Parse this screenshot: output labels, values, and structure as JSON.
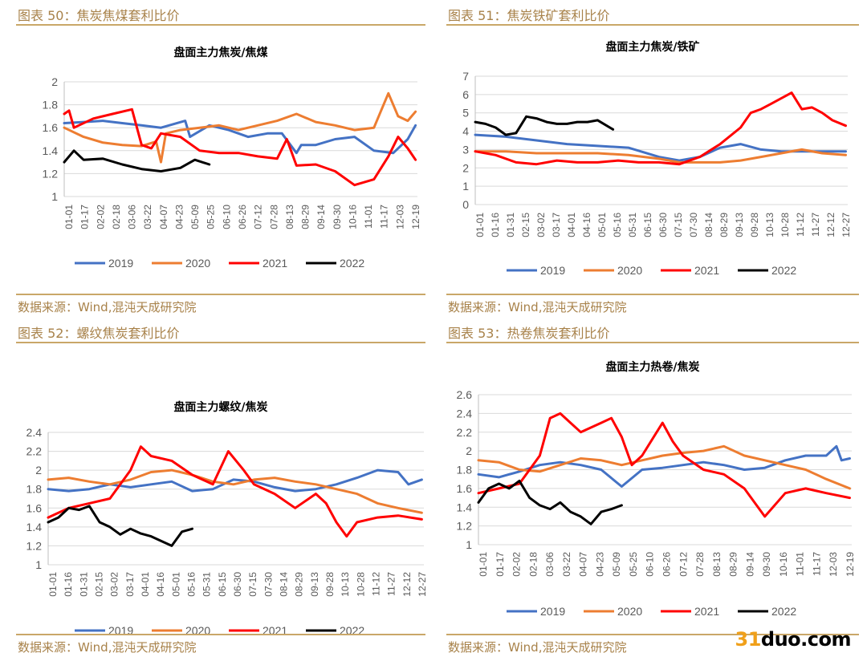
{
  "panels": [
    {
      "fig_title": "图表 50：焦炭焦煤套利比价",
      "source": "数据来源：Wind,混沌天成研究院",
      "chart_data": {
        "type": "line",
        "title": "盘面主力焦炭/焦煤",
        "ylim": [
          1,
          2
        ],
        "yticks": [
          "1",
          "1.2",
          "1.4",
          "1.6",
          "1.8",
          "2"
        ],
        "xticks": [
          "01-01",
          "01-17",
          "02-02",
          "02-18",
          "03-06",
          "03-22",
          "04-07",
          "04-23",
          "05-09",
          "05-25",
          "06-10",
          "06-26",
          "07-12",
          "07-28",
          "08-13",
          "08-29",
          "09-14",
          "09-30",
          "10-16",
          "11-01",
          "11-17",
          "12-03",
          "12-19"
        ],
        "legend_position": "bottom",
        "grid": true,
        "series": [
          {
            "name": "2019",
            "color": "#4472c4",
            "days": [
              0,
              20,
              40,
              60,
              80,
              100,
              125,
              130,
              150,
              170,
              190,
              210,
              225,
              240,
              245,
              260,
              280,
              300,
              320,
              340,
              355,
              363
            ],
            "values": [
              1.64,
              1.65,
              1.66,
              1.64,
              1.62,
              1.6,
              1.66,
              1.52,
              1.62,
              1.58,
              1.52,
              1.55,
              1.55,
              1.38,
              1.45,
              1.45,
              1.5,
              1.52,
              1.4,
              1.38,
              1.5,
              1.62
            ]
          },
          {
            "name": "2020",
            "color": "#ed7d31",
            "days": [
              0,
              20,
              40,
              60,
              80,
              95,
              100,
              105,
              120,
              140,
              160,
              180,
              200,
              220,
              240,
              260,
              280,
              300,
              320,
              330,
              335,
              345,
              355,
              363
            ],
            "values": [
              1.6,
              1.52,
              1.47,
              1.45,
              1.44,
              1.48,
              1.3,
              1.55,
              1.58,
              1.6,
              1.62,
              1.58,
              1.62,
              1.66,
              1.72,
              1.65,
              1.62,
              1.58,
              1.6,
              1.8,
              1.9,
              1.7,
              1.66,
              1.74
            ]
          },
          {
            "name": "2021",
            "color": "#ff0000",
            "days": [
              0,
              5,
              10,
              30,
              50,
              70,
              80,
              90,
              100,
              120,
              140,
              160,
              180,
              200,
              220,
              230,
              240,
              260,
              280,
              300,
              320,
              335,
              345,
              355,
              363
            ],
            "values": [
              1.72,
              1.75,
              1.6,
              1.68,
              1.72,
              1.76,
              1.45,
              1.42,
              1.55,
              1.52,
              1.4,
              1.38,
              1.38,
              1.35,
              1.33,
              1.5,
              1.27,
              1.28,
              1.22,
              1.1,
              1.15,
              1.35,
              1.52,
              1.42,
              1.32
            ]
          },
          {
            "name": "2022",
            "color": "#000000",
            "days": [
              0,
              10,
              20,
              40,
              60,
              80,
              100,
              120,
              135,
              150
            ],
            "values": [
              1.3,
              1.4,
              1.32,
              1.33,
              1.28,
              1.24,
              1.22,
              1.25,
              1.32,
              1.28
            ]
          }
        ]
      }
    },
    {
      "fig_title": "图表 51：焦炭铁矿套利比价",
      "source": "数据来源：Wind,混沌天成研究院",
      "chart_data": {
        "type": "line",
        "title": "盘面主力焦炭/铁矿",
        "ylim": [
          0,
          7
        ],
        "yticks": [
          "0",
          "1",
          "2",
          "3",
          "4",
          "5",
          "6",
          "7"
        ],
        "xticks": [
          "01-01",
          "01-16",
          "01-31",
          "02-15",
          "03-02",
          "03-17",
          "04-01",
          "04-16",
          "05-01",
          "05-16",
          "05-31",
          "06-15",
          "06-30",
          "07-15",
          "07-30",
          "08-14",
          "08-29",
          "09-13",
          "09-28",
          "10-13",
          "10-28",
          "11-12",
          "11-27",
          "12-12",
          "12-27"
        ],
        "legend_position": "bottom",
        "grid": true,
        "series": [
          {
            "name": "2019",
            "color": "#4472c4",
            "days": [
              0,
              30,
              60,
              90,
              120,
              150,
              180,
              200,
              220,
              240,
              260,
              280,
              300,
              320,
              340,
              363
            ],
            "values": [
              3.8,
              3.7,
              3.5,
              3.3,
              3.2,
              3.1,
              2.6,
              2.4,
              2.6,
              3.1,
              3.3,
              3.0,
              2.9,
              2.9,
              2.9,
              2.9
            ]
          },
          {
            "name": "2020",
            "color": "#ed7d31",
            "days": [
              0,
              30,
              60,
              90,
              120,
              150,
              180,
              200,
              220,
              240,
              260,
              280,
              300,
              320,
              340,
              363
            ],
            "values": [
              2.9,
              2.9,
              2.8,
              2.8,
              2.8,
              2.7,
              2.5,
              2.3,
              2.3,
              2.3,
              2.4,
              2.6,
              2.8,
              3.0,
              2.8,
              2.7
            ]
          },
          {
            "name": "2021",
            "color": "#ff0000",
            "days": [
              0,
              20,
              40,
              60,
              80,
              100,
              120,
              140,
              160,
              180,
              200,
              220,
              240,
              260,
              270,
              280,
              290,
              300,
              310,
              320,
              330,
              340,
              350,
              363
            ],
            "values": [
              2.9,
              2.7,
              2.3,
              2.2,
              2.4,
              2.3,
              2.3,
              2.4,
              2.3,
              2.3,
              2.2,
              2.6,
              3.3,
              4.2,
              5.0,
              5.2,
              5.5,
              5.8,
              6.1,
              5.2,
              5.3,
              5.0,
              4.6,
              4.3
            ]
          },
          {
            "name": "2022",
            "color": "#000000",
            "days": [
              0,
              10,
              20,
              30,
              40,
              50,
              60,
              70,
              80,
              90,
              100,
              110,
              120,
              135
            ],
            "values": [
              4.5,
              4.4,
              4.2,
              3.8,
              3.9,
              4.8,
              4.7,
              4.5,
              4.4,
              4.4,
              4.5,
              4.5,
              4.6,
              4.1
            ]
          }
        ]
      }
    },
    {
      "fig_title": "图表 52：螺纹焦炭套利比价",
      "source": "数据来源：Wind,混沌天成研究院",
      "chart_data": {
        "type": "line",
        "title": "盘面主力螺纹/焦炭",
        "ylim": [
          1,
          2.4
        ],
        "yticks": [
          "1",
          "1.2",
          "1.4",
          "1.6",
          "1.8",
          "2",
          "2.2",
          "2.4"
        ],
        "xticks": [
          "01-01",
          "01-16",
          "01-31",
          "02-15",
          "03-02",
          "03-17",
          "04-01",
          "04-16",
          "05-01",
          "05-16",
          "05-31",
          "06-15",
          "06-30",
          "07-15",
          "07-30",
          "08-14",
          "08-29",
          "09-13",
          "09-28",
          "10-13",
          "10-28",
          "11-12",
          "11-27",
          "12-12",
          "12-27"
        ],
        "legend_position": "bottom",
        "grid": true,
        "series": [
          {
            "name": "2019",
            "color": "#4472c4",
            "days": [
              0,
              20,
              40,
              60,
              80,
              100,
              120,
              140,
              160,
              180,
              200,
              220,
              240,
              260,
              280,
              300,
              320,
              340,
              350,
              363
            ],
            "values": [
              1.8,
              1.78,
              1.8,
              1.85,
              1.82,
              1.85,
              1.88,
              1.78,
              1.8,
              1.9,
              1.88,
              1.82,
              1.78,
              1.8,
              1.85,
              1.92,
              2.0,
              1.98,
              1.85,
              1.9
            ]
          },
          {
            "name": "2020",
            "color": "#ed7d31",
            "days": [
              0,
              20,
              40,
              60,
              80,
              100,
              120,
              140,
              160,
              180,
              200,
              220,
              240,
              260,
              280,
              300,
              320,
              340,
              363
            ],
            "values": [
              1.9,
              1.92,
              1.88,
              1.85,
              1.9,
              1.98,
              2.0,
              1.95,
              1.88,
              1.85,
              1.9,
              1.92,
              1.88,
              1.85,
              1.8,
              1.75,
              1.65,
              1.6,
              1.55
            ]
          },
          {
            "name": "2021",
            "color": "#ff0000",
            "days": [
              0,
              20,
              40,
              60,
              80,
              90,
              100,
              120,
              140,
              160,
              175,
              190,
              200,
              220,
              240,
              260,
              270,
              280,
              290,
              300,
              320,
              340,
              363
            ],
            "values": [
              1.5,
              1.6,
              1.65,
              1.7,
              2.0,
              2.25,
              2.15,
              2.1,
              1.95,
              1.85,
              2.2,
              2.0,
              1.85,
              1.75,
              1.6,
              1.75,
              1.65,
              1.45,
              1.3,
              1.45,
              1.5,
              1.52,
              1.48
            ]
          },
          {
            "name": "2022",
            "color": "#000000",
            "days": [
              0,
              10,
              20,
              30,
              40,
              50,
              60,
              70,
              80,
              90,
              100,
              110,
              120,
              130,
              140
            ],
            "values": [
              1.45,
              1.5,
              1.6,
              1.58,
              1.62,
              1.45,
              1.4,
              1.32,
              1.38,
              1.33,
              1.3,
              1.25,
              1.2,
              1.35,
              1.38
            ]
          }
        ]
      }
    },
    {
      "fig_title": "图表 53：热卷焦炭套利比价",
      "source": "数据来源：Wind,混沌天成研究院",
      "chart_data": {
        "type": "line",
        "title": "盘面主力热卷/焦炭",
        "ylim": [
          1,
          2.6
        ],
        "yticks": [
          "1",
          "1.2",
          "1.4",
          "1.6",
          "1.8",
          "2",
          "2.2",
          "2.4",
          "2.6"
        ],
        "xticks": [
          "01-01",
          "01-17",
          "02-02",
          "02-18",
          "03-06",
          "03-22",
          "04-07",
          "04-23",
          "05-09",
          "05-25",
          "06-10",
          "06-26",
          "07-12",
          "07-28",
          "08-13",
          "08-29",
          "09-14",
          "09-30",
          "10-16",
          "11-01",
          "11-17",
          "12-03",
          "12-19"
        ],
        "legend_position": "bottom",
        "grid": true,
        "series": [
          {
            "name": "2019",
            "color": "#4472c4",
            "days": [
              0,
              20,
              40,
              60,
              80,
              100,
              120,
              140,
              160,
              180,
              200,
              220,
              240,
              260,
              280,
              300,
              320,
              340,
              350,
              355,
              363
            ],
            "values": [
              1.75,
              1.72,
              1.78,
              1.85,
              1.88,
              1.85,
              1.8,
              1.62,
              1.8,
              1.82,
              1.85,
              1.88,
              1.85,
              1.8,
              1.82,
              1.9,
              1.95,
              1.95,
              2.05,
              1.9,
              1.92
            ]
          },
          {
            "name": "2020",
            "color": "#ed7d31",
            "days": [
              0,
              20,
              40,
              60,
              80,
              100,
              120,
              140,
              160,
              180,
              200,
              220,
              240,
              260,
              280,
              300,
              320,
              340,
              363
            ],
            "values": [
              1.9,
              1.88,
              1.8,
              1.78,
              1.85,
              1.92,
              1.9,
              1.85,
              1.9,
              1.95,
              1.98,
              2.0,
              2.05,
              1.95,
              1.9,
              1.85,
              1.8,
              1.7,
              1.6
            ]
          },
          {
            "name": "2021",
            "color": "#ff0000",
            "days": [
              0,
              20,
              40,
              60,
              70,
              80,
              90,
              100,
              120,
              130,
              140,
              150,
              160,
              180,
              190,
              200,
              220,
              240,
              260,
              280,
              300,
              320,
              340,
              363
            ],
            "values": [
              1.55,
              1.6,
              1.65,
              1.95,
              2.35,
              2.4,
              2.3,
              2.2,
              2.3,
              2.35,
              2.15,
              1.85,
              1.95,
              2.3,
              2.1,
              1.95,
              1.8,
              1.75,
              1.6,
              1.3,
              1.55,
              1.6,
              1.55,
              1.5
            ]
          },
          {
            "name": "2022",
            "color": "#000000",
            "days": [
              0,
              10,
              20,
              30,
              40,
              50,
              60,
              70,
              80,
              90,
              100,
              110,
              120,
              130,
              140
            ],
            "values": [
              1.45,
              1.6,
              1.65,
              1.6,
              1.68,
              1.5,
              1.42,
              1.38,
              1.45,
              1.35,
              1.3,
              1.22,
              1.35,
              1.38,
              1.42
            ]
          }
        ]
      }
    }
  ],
  "watermark": {
    "accent": "31",
    "rest": "duo.com"
  }
}
